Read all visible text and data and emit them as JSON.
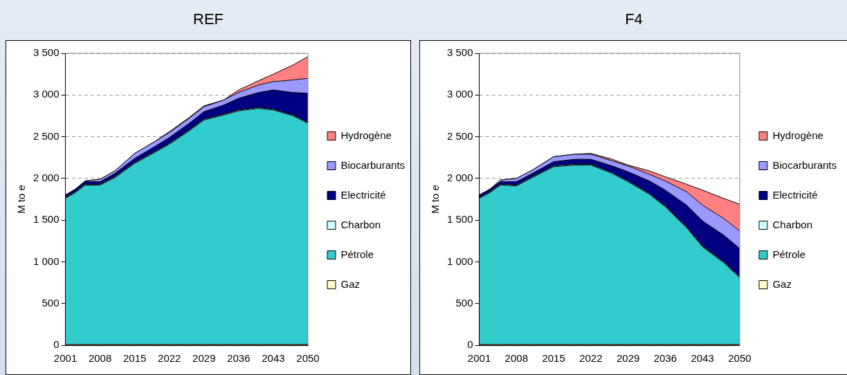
{
  "chart_data": [
    {
      "type": "area",
      "title": "REF",
      "ylabel": "M to e",
      "stacked": true,
      "grid": "y",
      "legend": "right",
      "line_style": "solid",
      "marker": "none",
      "x": [
        2001,
        2003,
        2005,
        2008,
        2011,
        2015,
        2019,
        2022,
        2026,
        2029,
        2033,
        2036,
        2040,
        2043,
        2047,
        2050
      ],
      "xlim": [
        2001,
        2050
      ],
      "xticks": [
        2001,
        2008,
        2015,
        2022,
        2029,
        2036,
        2043,
        2050
      ],
      "ylim": [
        0,
        3500
      ],
      "yticks": [
        {
          "value": 0,
          "label": "0"
        },
        {
          "value": 500,
          "label": "500"
        },
        {
          "value": 1000,
          "label": "1 000"
        },
        {
          "value": 1500,
          "label": "1 500"
        },
        {
          "value": 2000,
          "label": "2 000"
        },
        {
          "value": 2500,
          "label": "2 500"
        },
        {
          "value": 3000,
          "label": "3 000"
        },
        {
          "value": 3500,
          "label": "3 500"
        }
      ],
      "series": [
        {
          "name": "Gaz",
          "color": "#ffffcc",
          "values": [
            10,
            10,
            10,
            10,
            10,
            10,
            10,
            10,
            10,
            10,
            10,
            10,
            10,
            10,
            10,
            10
          ]
        },
        {
          "name": "Pétrole",
          "color": "#33cccc",
          "values": [
            1750,
            1820,
            1910,
            1910,
            2000,
            2170,
            2300,
            2400,
            2560,
            2690,
            2750,
            2800,
            2830,
            2810,
            2740,
            2650
          ]
        },
        {
          "name": "Charbon",
          "color": "#ccffff",
          "values": [
            10,
            10,
            10,
            10,
            10,
            10,
            10,
            10,
            10,
            10,
            10,
            10,
            10,
            10,
            10,
            10
          ]
        },
        {
          "name": "Electricité",
          "color": "#000080",
          "values": [
            30,
            30,
            30,
            30,
            40,
            50,
            60,
            70,
            80,
            90,
            110,
            140,
            180,
            230,
            270,
            350
          ]
        },
        {
          "name": "Biocarburants",
          "color": "#9999ff",
          "values": [
            0,
            0,
            10,
            30,
            30,
            60,
            60,
            60,
            60,
            60,
            60,
            70,
            90,
            100,
            150,
            180
          ]
        },
        {
          "name": "Hydrogène",
          "color": "#ff8080",
          "values": [
            0,
            0,
            0,
            0,
            0,
            0,
            0,
            10,
            10,
            10,
            0,
            30,
            50,
            90,
            180,
            260
          ]
        }
      ]
    },
    {
      "type": "area",
      "title": "F4",
      "ylabel": "M to e",
      "stacked": true,
      "grid": "y",
      "legend": "right",
      "line_style": "solid",
      "marker": "none",
      "x": [
        2001,
        2003,
        2005,
        2008,
        2011,
        2015,
        2019,
        2022,
        2026,
        2029,
        2033,
        2036,
        2040,
        2043,
        2047,
        2050
      ],
      "xlim": [
        2001,
        2050
      ],
      "xticks": [
        2001,
        2008,
        2015,
        2022,
        2029,
        2036,
        2043,
        2050
      ],
      "ylim": [
        0,
        3500
      ],
      "yticks": [
        {
          "value": 0,
          "label": "0"
        },
        {
          "value": 500,
          "label": "500"
        },
        {
          "value": 1000,
          "label": "1 000"
        },
        {
          "value": 1500,
          "label": "1 500"
        },
        {
          "value": 2000,
          "label": "2 000"
        },
        {
          "value": 2500,
          "label": "2 500"
        },
        {
          "value": 3000,
          "label": "3 000"
        },
        {
          "value": 3500,
          "label": "3 500"
        }
      ],
      "series": [
        {
          "name": "Gaz",
          "color": "#ffffcc",
          "values": [
            10,
            10,
            10,
            10,
            10,
            10,
            10,
            10,
            10,
            10,
            10,
            10,
            10,
            10,
            10,
            10
          ]
        },
        {
          "name": "Pétrole",
          "color": "#33cccc",
          "values": [
            1750,
            1820,
            1910,
            1900,
            2000,
            2130,
            2150,
            2150,
            2050,
            1950,
            1800,
            1650,
            1400,
            1170,
            980,
            800
          ]
        },
        {
          "name": "Charbon",
          "color": "#ccffff",
          "values": [
            10,
            10,
            10,
            10,
            10,
            10,
            10,
            10,
            10,
            10,
            10,
            10,
            10,
            10,
            10,
            10
          ]
        },
        {
          "name": "Electricité",
          "color": "#000080",
          "values": [
            30,
            30,
            30,
            40,
            40,
            50,
            60,
            60,
            80,
            110,
            150,
            190,
            260,
            300,
            320,
            340
          ]
        },
        {
          "name": "Biocarburants",
          "color": "#9999ff",
          "values": [
            0,
            0,
            20,
            40,
            40,
            60,
            60,
            60,
            60,
            70,
            80,
            110,
            160,
            190,
            200,
            210
          ]
        },
        {
          "name": "Hydrogène",
          "color": "#ff8080",
          "values": [
            0,
            0,
            0,
            0,
            0,
            0,
            0,
            10,
            20,
            10,
            40,
            50,
            90,
            180,
            240,
            320
          ]
        }
      ]
    }
  ]
}
